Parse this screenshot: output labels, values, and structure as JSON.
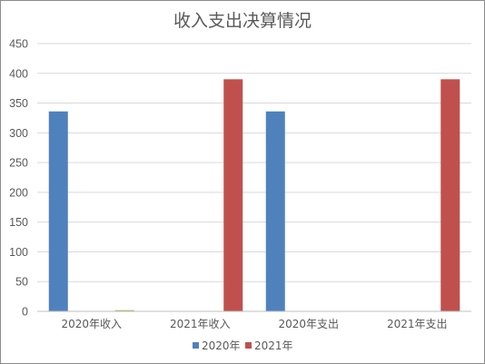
{
  "chart_data": {
    "type": "bar",
    "title": "收入支出决算情况",
    "categories": [
      "2020年收入",
      "2021年收入",
      "2020年支出",
      "2021年支出"
    ],
    "series": [
      {
        "name": "2020年",
        "color": "#4f81bd",
        "values": [
          336,
          0,
          336,
          0
        ]
      },
      {
        "name": "2021年",
        "color": "#c0504d",
        "values": [
          2,
          390,
          0,
          390
        ]
      }
    ],
    "ylim": [
      0,
      450
    ],
    "yticks": [
      0,
      50,
      100,
      150,
      200,
      250,
      300,
      350,
      400,
      450
    ],
    "grid": true,
    "legend": "bottom"
  }
}
